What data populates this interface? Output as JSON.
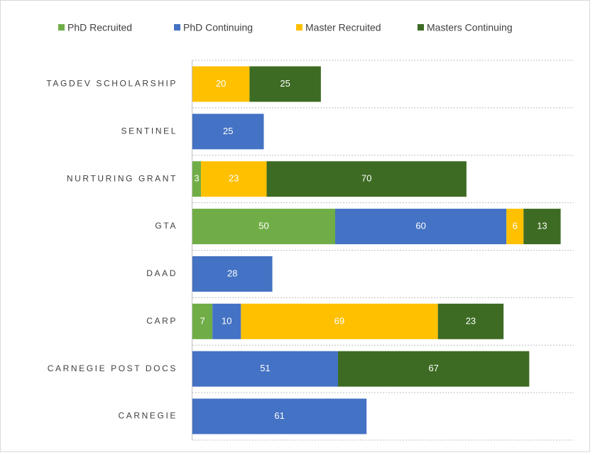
{
  "chart_data": {
    "type": "stacked-bar-horizontal",
    "categories": [
      "TAGDEV SCHOLARSHIP",
      "SENTINEL",
      "NURTURING GRANT",
      "GTA",
      "DAAD",
      "CARP",
      "CARNEGIE POST DOCS",
      "CARNEGIE"
    ],
    "series": [
      {
        "name": "PhD Recruited",
        "color": "#70ad47",
        "values": [
          null,
          null,
          3,
          50,
          null,
          7,
          null,
          null
        ]
      },
      {
        "name": "PhD Continuing",
        "color": "#4472c4",
        "values": [
          null,
          25,
          null,
          60,
          28,
          10,
          51,
          61
        ]
      },
      {
        "name": "Master Recruited",
        "color": "#ffc000",
        "values": [
          20,
          null,
          23,
          6,
          null,
          69,
          null,
          null
        ]
      },
      {
        "name": "Masters Continuing",
        "color": "#3d6b23",
        "values": [
          25,
          null,
          70,
          13,
          null,
          23,
          67,
          null
        ]
      }
    ],
    "legend": "top"
  }
}
